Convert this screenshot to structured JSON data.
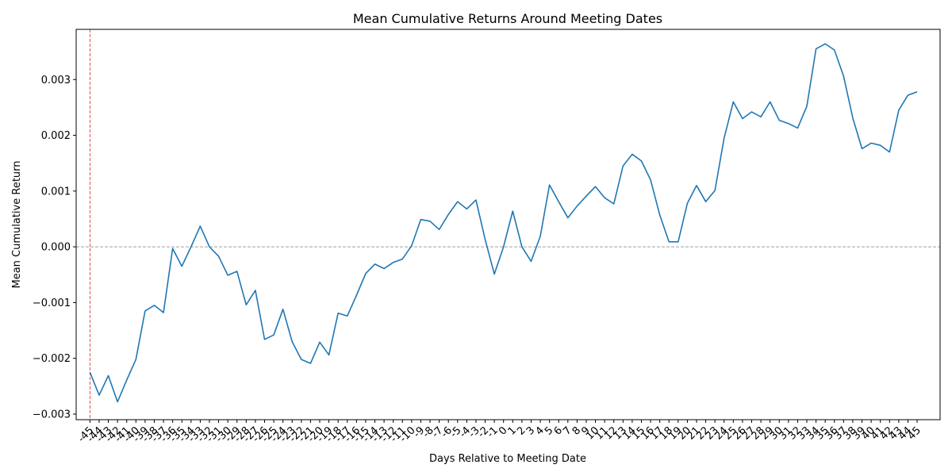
{
  "chart_data": {
    "type": "line",
    "title": "Mean Cumulative Returns Around Meeting Dates",
    "xlabel": "Days Relative to Meeting Date",
    "ylabel": "Mean Cumulative Return",
    "xlim": [
      -46.5,
      47.5
    ],
    "ylim": [
      -0.0031,
      0.0039
    ],
    "yticks": [
      -0.003,
      -0.002,
      -0.001,
      0.0,
      0.001,
      0.002,
      0.003
    ],
    "ytick_labels": [
      "−0.003",
      "−0.002",
      "−0.001",
      "0.000",
      "0.001",
      "0.002",
      "0.003"
    ],
    "x": [
      -45,
      -44,
      -43,
      -42,
      -41,
      -40,
      -39,
      -38,
      -37,
      -36,
      -35,
      -34,
      -33,
      -32,
      -31,
      -30,
      -29,
      -28,
      -27,
      -26,
      -25,
      -24,
      -23,
      -22,
      -21,
      -20,
      -19,
      -18,
      -17,
      -16,
      -15,
      -14,
      -13,
      -12,
      -11,
      -10,
      -9,
      -8,
      -7,
      -6,
      -5,
      -4,
      -3,
      -2,
      -1,
      0,
      1,
      2,
      3,
      4,
      5,
      6,
      7,
      8,
      9,
      10,
      11,
      12,
      13,
      14,
      15,
      16,
      17,
      18,
      19,
      20,
      21,
      22,
      23,
      24,
      25,
      26,
      27,
      28,
      29,
      30,
      31,
      32,
      33,
      34,
      35,
      36,
      37,
      38,
      39,
      40,
      41,
      42,
      43,
      44,
      45
    ],
    "series": [
      {
        "values": [
          -0.00225,
          -0.00266,
          -0.00231,
          -0.00278,
          -0.00239,
          -0.00202,
          -0.00115,
          -0.00105,
          -0.00118,
          -3e-05,
          -0.00035,
          0.0,
          0.00037,
          0.0,
          -0.00017,
          -0.00051,
          -0.00044,
          -0.00104,
          -0.00078,
          -0.00166,
          -0.00158,
          -0.00112,
          -0.0017,
          -0.00202,
          -0.00209,
          -0.00171,
          -0.00194,
          -0.00119,
          -0.00124,
          -0.00087,
          -0.00048,
          -0.00031,
          -0.00039,
          -0.00028,
          -0.00022,
          2e-05,
          0.00049,
          0.00046,
          0.00031,
          0.00058,
          0.00081,
          0.00068,
          0.00084,
          0.00013,
          -0.00049,
          0.0,
          0.00064,
          0.0,
          -0.00026,
          0.00019,
          0.00111,
          0.00081,
          0.00052,
          0.00073,
          0.00091,
          0.00108,
          0.00088,
          0.00077,
          0.00145,
          0.00166,
          0.00154,
          0.0012,
          0.00057,
          9e-05,
          9e-05,
          0.00078,
          0.0011,
          0.00081,
          0.00101,
          0.00195,
          0.0026,
          0.0023,
          0.00242,
          0.00233,
          0.0026,
          0.00227,
          0.00221,
          0.00213,
          0.00252,
          0.00355,
          0.00364,
          0.00353,
          0.00306,
          0.00231,
          0.00176,
          0.00186,
          0.00182,
          0.0017,
          0.00245,
          0.00272,
          0.00278
        ],
        "color": "#1f77b4"
      }
    ],
    "reference_lines": [
      {
        "axis": "y",
        "value": 0,
        "color": "#808080",
        "style": "dashed"
      },
      {
        "axis": "x",
        "value": -45,
        "color": "#d62728",
        "style": "dashed"
      }
    ],
    "xtick_labels": [
      "-45",
      "-44",
      "-43",
      "-42",
      "-41",
      "-40",
      "-39",
      "-38",
      "-37",
      "-36",
      "-35",
      "-34",
      "-33",
      "-32",
      "-31",
      "-30",
      "-29",
      "-28",
      "-27",
      "-26",
      "-25",
      "-24",
      "-23",
      "-22",
      "-21",
      "-20",
      "-19",
      "-18",
      "-17",
      "-16",
      "-15",
      "-14",
      "-13",
      "-12",
      "-11",
      "-10",
      "-9",
      "-8",
      "-7",
      "-6",
      "-5",
      "-4",
      "-3",
      "-2",
      "-1",
      "0",
      "1",
      "2",
      "3",
      "4",
      "5",
      "6",
      "7",
      "8",
      "9",
      "10",
      "11",
      "12",
      "13",
      "14",
      "15",
      "16",
      "17",
      "18",
      "19",
      "20",
      "21",
      "22",
      "23",
      "24",
      "25",
      "26",
      "27",
      "28",
      "29",
      "30",
      "31",
      "32",
      "33",
      "34",
      "35",
      "36",
      "37",
      "38",
      "39",
      "40",
      "41",
      "42",
      "43",
      "44",
      "45"
    ],
    "xtick_rotation": 45,
    "grid": false,
    "legend": "none"
  }
}
